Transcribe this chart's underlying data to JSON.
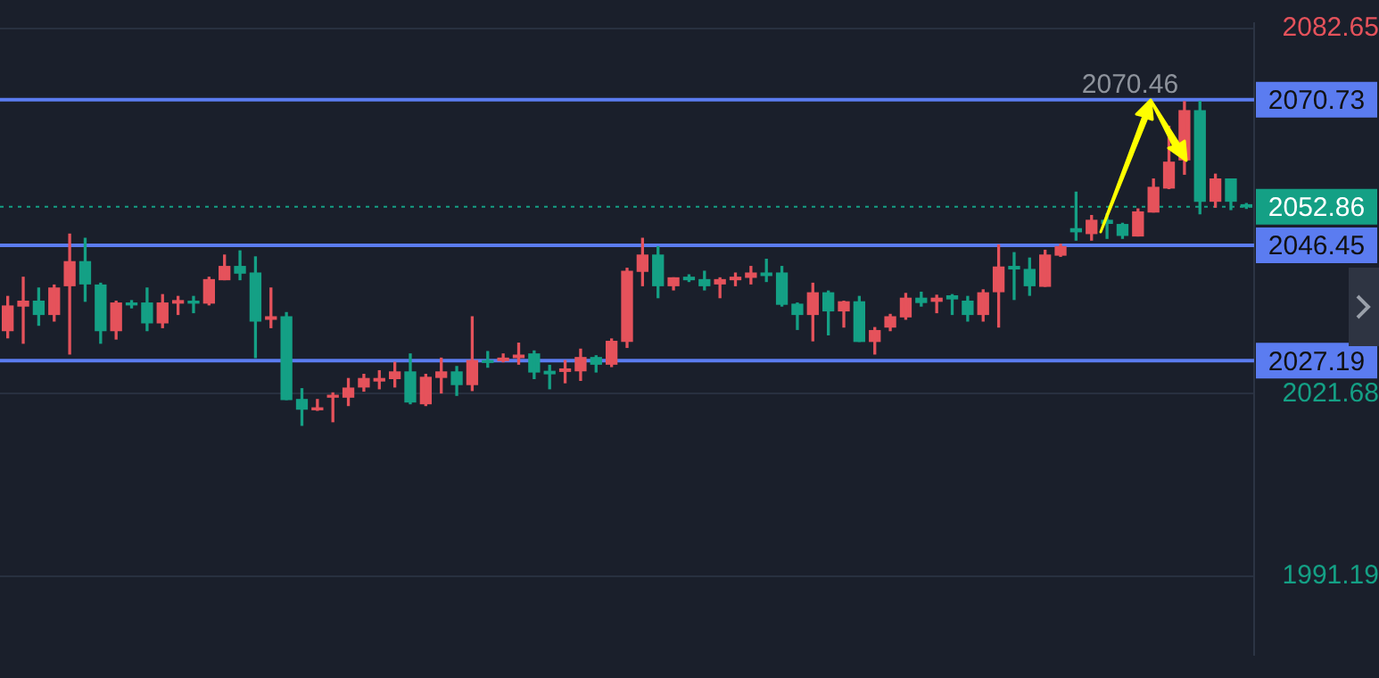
{
  "chart_data": {
    "type": "candlestick",
    "categories": [
      null,
      null,
      null,
      null,
      null,
      null,
      null,
      null,
      null,
      null,
      null,
      null,
      null,
      null,
      null,
      null,
      null,
      null,
      null,
      null,
      null,
      null,
      null,
      null,
      null,
      null,
      null,
      null,
      null,
      null,
      null,
      null,
      null,
      null,
      null,
      null,
      null,
      null,
      null,
      null,
      null,
      null,
      null,
      null,
      null,
      null,
      null,
      null,
      null,
      null,
      null,
      null,
      null,
      null,
      null,
      null,
      null,
      null,
      null,
      null,
      null,
      null,
      null,
      null,
      null,
      null,
      null,
      null,
      null,
      null,
      null,
      null,
      null,
      null,
      null,
      null,
      null,
      null,
      null,
      null,
      null
    ],
    "ohlc": [
      [
        2032.2,
        2037.9,
        2031.0,
        2036.3
      ],
      [
        2036.3,
        2041.1,
        2030.1,
        2037.1
      ],
      [
        2037.1,
        2039.3,
        2033.1,
        2034.9
      ],
      [
        2034.9,
        2039.8,
        2033.8,
        2039.3
      ],
      [
        2039.7,
        2048.3,
        2028.3,
        2043.7
      ],
      [
        2043.7,
        2047.6,
        2037.1,
        2040.0
      ],
      [
        2039.8,
        2040.1,
        2030.1,
        2032.2
      ],
      [
        2032.2,
        2037.1,
        2030.8,
        2036.8
      ],
      [
        2036.8,
        2037.2,
        2036.0,
        2036.5
      ],
      [
        2036.8,
        2039.3,
        2032.2,
        2033.5
      ],
      [
        2033.5,
        2038.2,
        2032.7,
        2036.8
      ],
      [
        2036.8,
        2037.9,
        2034.9,
        2037.2
      ],
      [
        2037.1,
        2037.9,
        2035.2,
        2036.8
      ],
      [
        2036.8,
        2041.1,
        2036.5,
        2040.7
      ],
      [
        2040.7,
        2044.8,
        2040.7,
        2042.9
      ],
      [
        2042.9,
        2045.5,
        2040.7,
        2041.8
      ],
      [
        2041.8,
        2044.5,
        2027.7,
        2033.8
      ],
      [
        2034.1,
        2039.3,
        2032.7,
        2034.5
      ],
      [
        2034.5,
        2035.2,
        2020.7,
        2020.7
      ],
      [
        2020.7,
        2022.5,
        2016.4,
        2019.1
      ],
      [
        2019.0,
        2020.7,
        2018.9,
        2019.3
      ],
      [
        2021.1,
        2021.8,
        2017.0,
        2021.3
      ],
      [
        2021.1,
        2024.2,
        2019.7,
        2022.6
      ],
      [
        2022.8,
        2024.9,
        2022.1,
        2024.2
      ],
      [
        2023.8,
        2025.5,
        2022.5,
        2024.2
      ],
      [
        2024.2,
        2026.9,
        2022.8,
        2025.3
      ],
      [
        2025.3,
        2028.3,
        2020.0,
        2020.3
      ],
      [
        2020.0,
        2024.9,
        2019.7,
        2024.4
      ],
      [
        2024.4,
        2027.6,
        2021.8,
        2025.3
      ],
      [
        2025.3,
        2026.2,
        2021.4,
        2023.2
      ],
      [
        2023.2,
        2034.5,
        2022.2,
        2027.2
      ],
      [
        2027.2,
        2028.7,
        2026.1,
        2026.9
      ],
      [
        2027.2,
        2028.3,
        2027.0,
        2027.6
      ],
      [
        2027.7,
        2030.1,
        2026.6,
        2028.1
      ],
      [
        2028.3,
        2028.8,
        2024.2,
        2025.3
      ],
      [
        2025.4,
        2026.4,
        2022.5,
        2025.0
      ],
      [
        2025.4,
        2027.2,
        2023.5,
        2025.8
      ],
      [
        2025.5,
        2029.1,
        2023.9,
        2027.7
      ],
      [
        2027.7,
        2028.0,
        2025.3,
        2026.6
      ],
      [
        2026.6,
        2030.8,
        2026.2,
        2030.4
      ],
      [
        2030.4,
        2042.6,
        2029.4,
        2042.1
      ],
      [
        2042.1,
        2047.6,
        2039.7,
        2044.8
      ],
      [
        2044.8,
        2046.2,
        2037.7,
        2039.7
      ],
      [
        2039.7,
        2041.0,
        2039.0,
        2041.0
      ],
      [
        2041.1,
        2041.5,
        2040.4,
        2040.7
      ],
      [
        2040.7,
        2042.1,
        2039.0,
        2039.7
      ],
      [
        2040.0,
        2041.0,
        2037.7,
        2040.7
      ],
      [
        2040.7,
        2041.8,
        2039.7,
        2041.1
      ],
      [
        2041.1,
        2042.9,
        2040.0,
        2041.8
      ],
      [
        2041.8,
        2044.1,
        2040.4,
        2041.4
      ],
      [
        2041.8,
        2042.9,
        2036.3,
        2036.6
      ],
      [
        2036.6,
        2036.8,
        2032.4,
        2034.9
      ],
      [
        2034.9,
        2040.1,
        2030.5,
        2038.5
      ],
      [
        2038.5,
        2038.8,
        2031.5,
        2035.5
      ],
      [
        2035.5,
        2037.1,
        2032.8,
        2037.0
      ],
      [
        2037.0,
        2037.9,
        2030.4,
        2030.4
      ],
      [
        2030.4,
        2032.7,
        2028.3,
        2032.2
      ],
      [
        2032.8,
        2034.9,
        2032.2,
        2034.5
      ],
      [
        2034.5,
        2038.4,
        2034.1,
        2037.6
      ],
      [
        2037.6,
        2038.6,
        2036.3,
        2036.9
      ],
      [
        2037.1,
        2038.1,
        2035.2,
        2037.6
      ],
      [
        2038.0,
        2038.2,
        2034.9,
        2037.5
      ],
      [
        2037.1,
        2037.9,
        2033.8,
        2034.9
      ],
      [
        2034.9,
        2039.0,
        2033.8,
        2038.5
      ],
      [
        2038.7,
        2046.5,
        2032.8,
        2042.8
      ],
      [
        2042.9,
        2045.2,
        2037.4,
        2042.5
      ],
      [
        2042.4,
        2044.3,
        2038.1,
        2039.7
      ],
      [
        2039.6,
        2045.6,
        2039.6,
        2044.8
      ],
      [
        2044.8,
        2046.6,
        2044.6,
        2046.2
      ],
      [
        2049.2,
        2055.3,
        2047.3,
        2048.7
      ],
      [
        2048.4,
        2051.4,
        2047.3,
        2050.6
      ],
      [
        2050.6,
        2051.7,
        2047.6,
        2050.1
      ],
      [
        2049.9,
        2050.1,
        2047.6,
        2048.1
      ],
      [
        2048.0,
        2052.5,
        2048.0,
        2052.0
      ],
      [
        2052.0,
        2057.5,
        2052.0,
        2056.1
      ],
      [
        2056.0,
        2066.3,
        2055.9,
        2060.3
      ],
      [
        2060.7,
        2070.4,
        2058.3,
        2068.9
      ],
      [
        2068.9,
        2070.46,
        2051.7,
        2053.8
      ],
      [
        2053.8,
        2058.3,
        2052.8,
        2057.5
      ],
      [
        2057.5,
        2057.5,
        2052.4,
        2053.8
      ],
      [
        2053.2,
        2053.4,
        2052.6,
        2052.86
      ]
    ],
    "colors": [
      "#e5525b",
      "#e5525b",
      "#14a085",
      "#e5525b",
      "#e5525b",
      "#14a085",
      "#14a085",
      "#e5525b",
      "#14a085",
      "#14a085",
      "#e5525b",
      "#e5525b",
      "#14a085",
      "#e5525b",
      "#e5525b",
      "#14a085",
      "#14a085",
      "#e5525b",
      "#14a085",
      "#14a085",
      "#e5525b",
      "#e5525b",
      "#e5525b",
      "#e5525b",
      "#e5525b",
      "#e5525b",
      "#14a085",
      "#e5525b",
      "#e5525b",
      "#14a085",
      "#e5525b",
      "#14a085",
      "#e5525b",
      "#e5525b",
      "#14a085",
      "#14a085",
      "#e5525b",
      "#e5525b",
      "#14a085",
      "#e5525b",
      "#e5525b",
      "#e5525b",
      "#14a085",
      "#e5525b",
      "#14a085",
      "#14a085",
      "#e5525b",
      "#e5525b",
      "#e5525b",
      "#14a085",
      "#14a085",
      "#14a085",
      "#e5525b",
      "#14a085",
      "#e5525b",
      "#14a085",
      "#e5525b",
      "#e5525b",
      "#e5525b",
      "#14a085",
      "#e5525b",
      "#14a085",
      "#14a085",
      "#e5525b",
      "#e5525b",
      "#14a085",
      "#14a085",
      "#e5525b",
      "#e5525b",
      "#14a085",
      "#e5525b",
      "#14a085",
      "#14a085",
      "#e5525b",
      "#e5525b",
      "#e5525b",
      "#e5525b",
      "#14a085",
      "#e5525b",
      "#14a085",
      "#14a085"
    ],
    "ylim": [
      1978.1,
      2083.5
    ],
    "yticks": [
      2082.65,
      2021.68,
      1991.19
    ],
    "grid": "y",
    "legend": false,
    "ref_lines": [
      {
        "axis": "y",
        "value": 2070.73,
        "label": "2070.73",
        "color": "#5b7cf0"
      },
      {
        "axis": "y",
        "value": 2052.86,
        "label": "2052.86",
        "color": "#14a085",
        "line_style": "dotted"
      },
      {
        "axis": "y",
        "value": 2046.45,
        "label": "2046.45",
        "color": "#5b7cf0"
      },
      {
        "axis": "y",
        "value": 2027.19,
        "label": "2027.19",
        "color": "#5b7cf0"
      }
    ],
    "annotations": [
      {
        "text": "2070.46",
        "y": 2070.46
      }
    ]
  }
}
